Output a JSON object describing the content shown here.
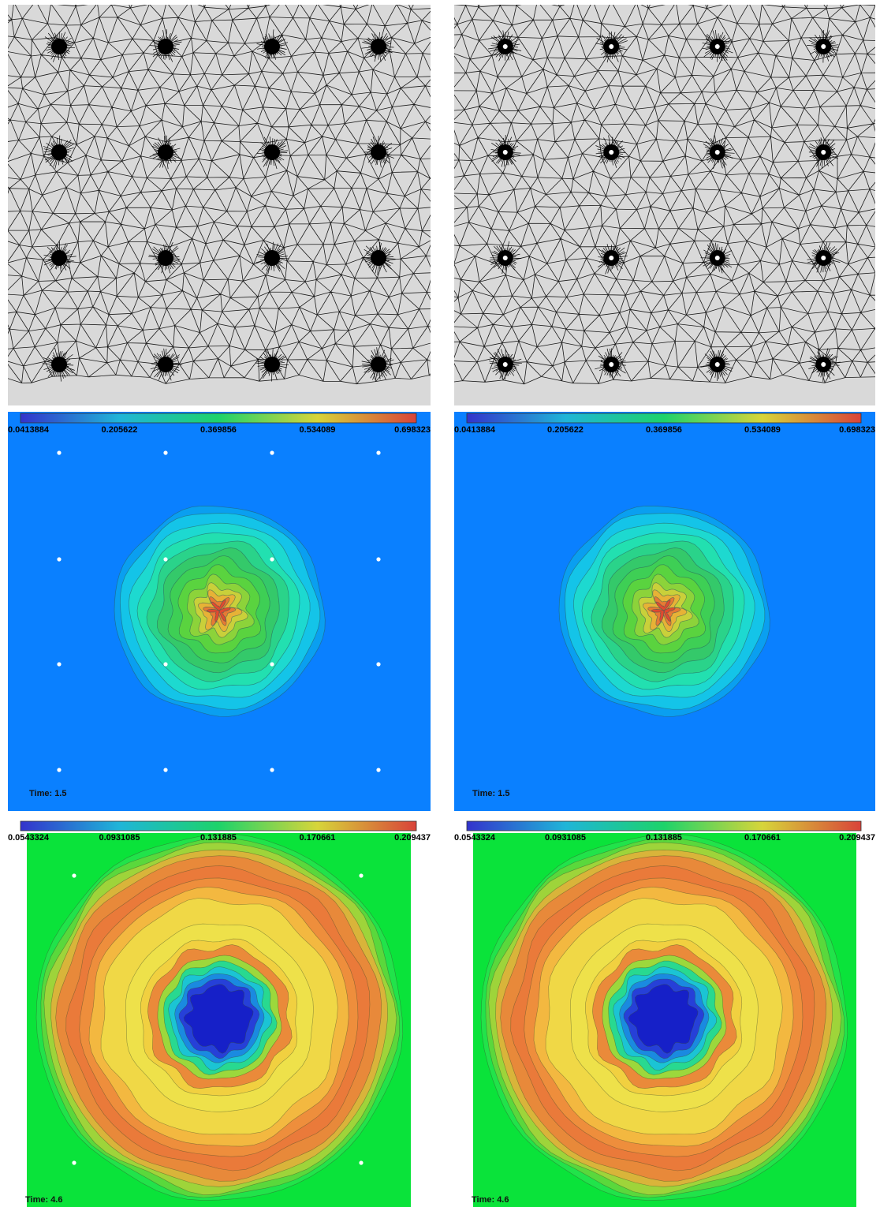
{
  "figure": {
    "mesh_panels": [
      {
        "id": "mesh-left",
        "hole_style": "open"
      },
      {
        "id": "mesh-right",
        "hole_style": "filled"
      }
    ],
    "field_rows": [
      {
        "time_label": "Time: 1.5",
        "colorbar_ticks": [
          "0.0413884",
          "0.205622",
          "0.369856",
          "0.534089",
          "0.698323"
        ],
        "background_color": "#0a80ff",
        "pattern": "central-peak"
      },
      {
        "time_label": "Time: 4.6",
        "colorbar_ticks": [
          "0.0543324",
          "0.0931085",
          "0.131885",
          "0.170661",
          "0.209437"
        ],
        "background_color": "#0ae33a",
        "pattern": "ring"
      }
    ],
    "colormap": [
      "#3333cc",
      "#1fb5d8",
      "#1dd36a",
      "#d7d53a",
      "#d9433a"
    ],
    "obstacle_grid": {
      "rows": 4,
      "cols": 4
    }
  }
}
